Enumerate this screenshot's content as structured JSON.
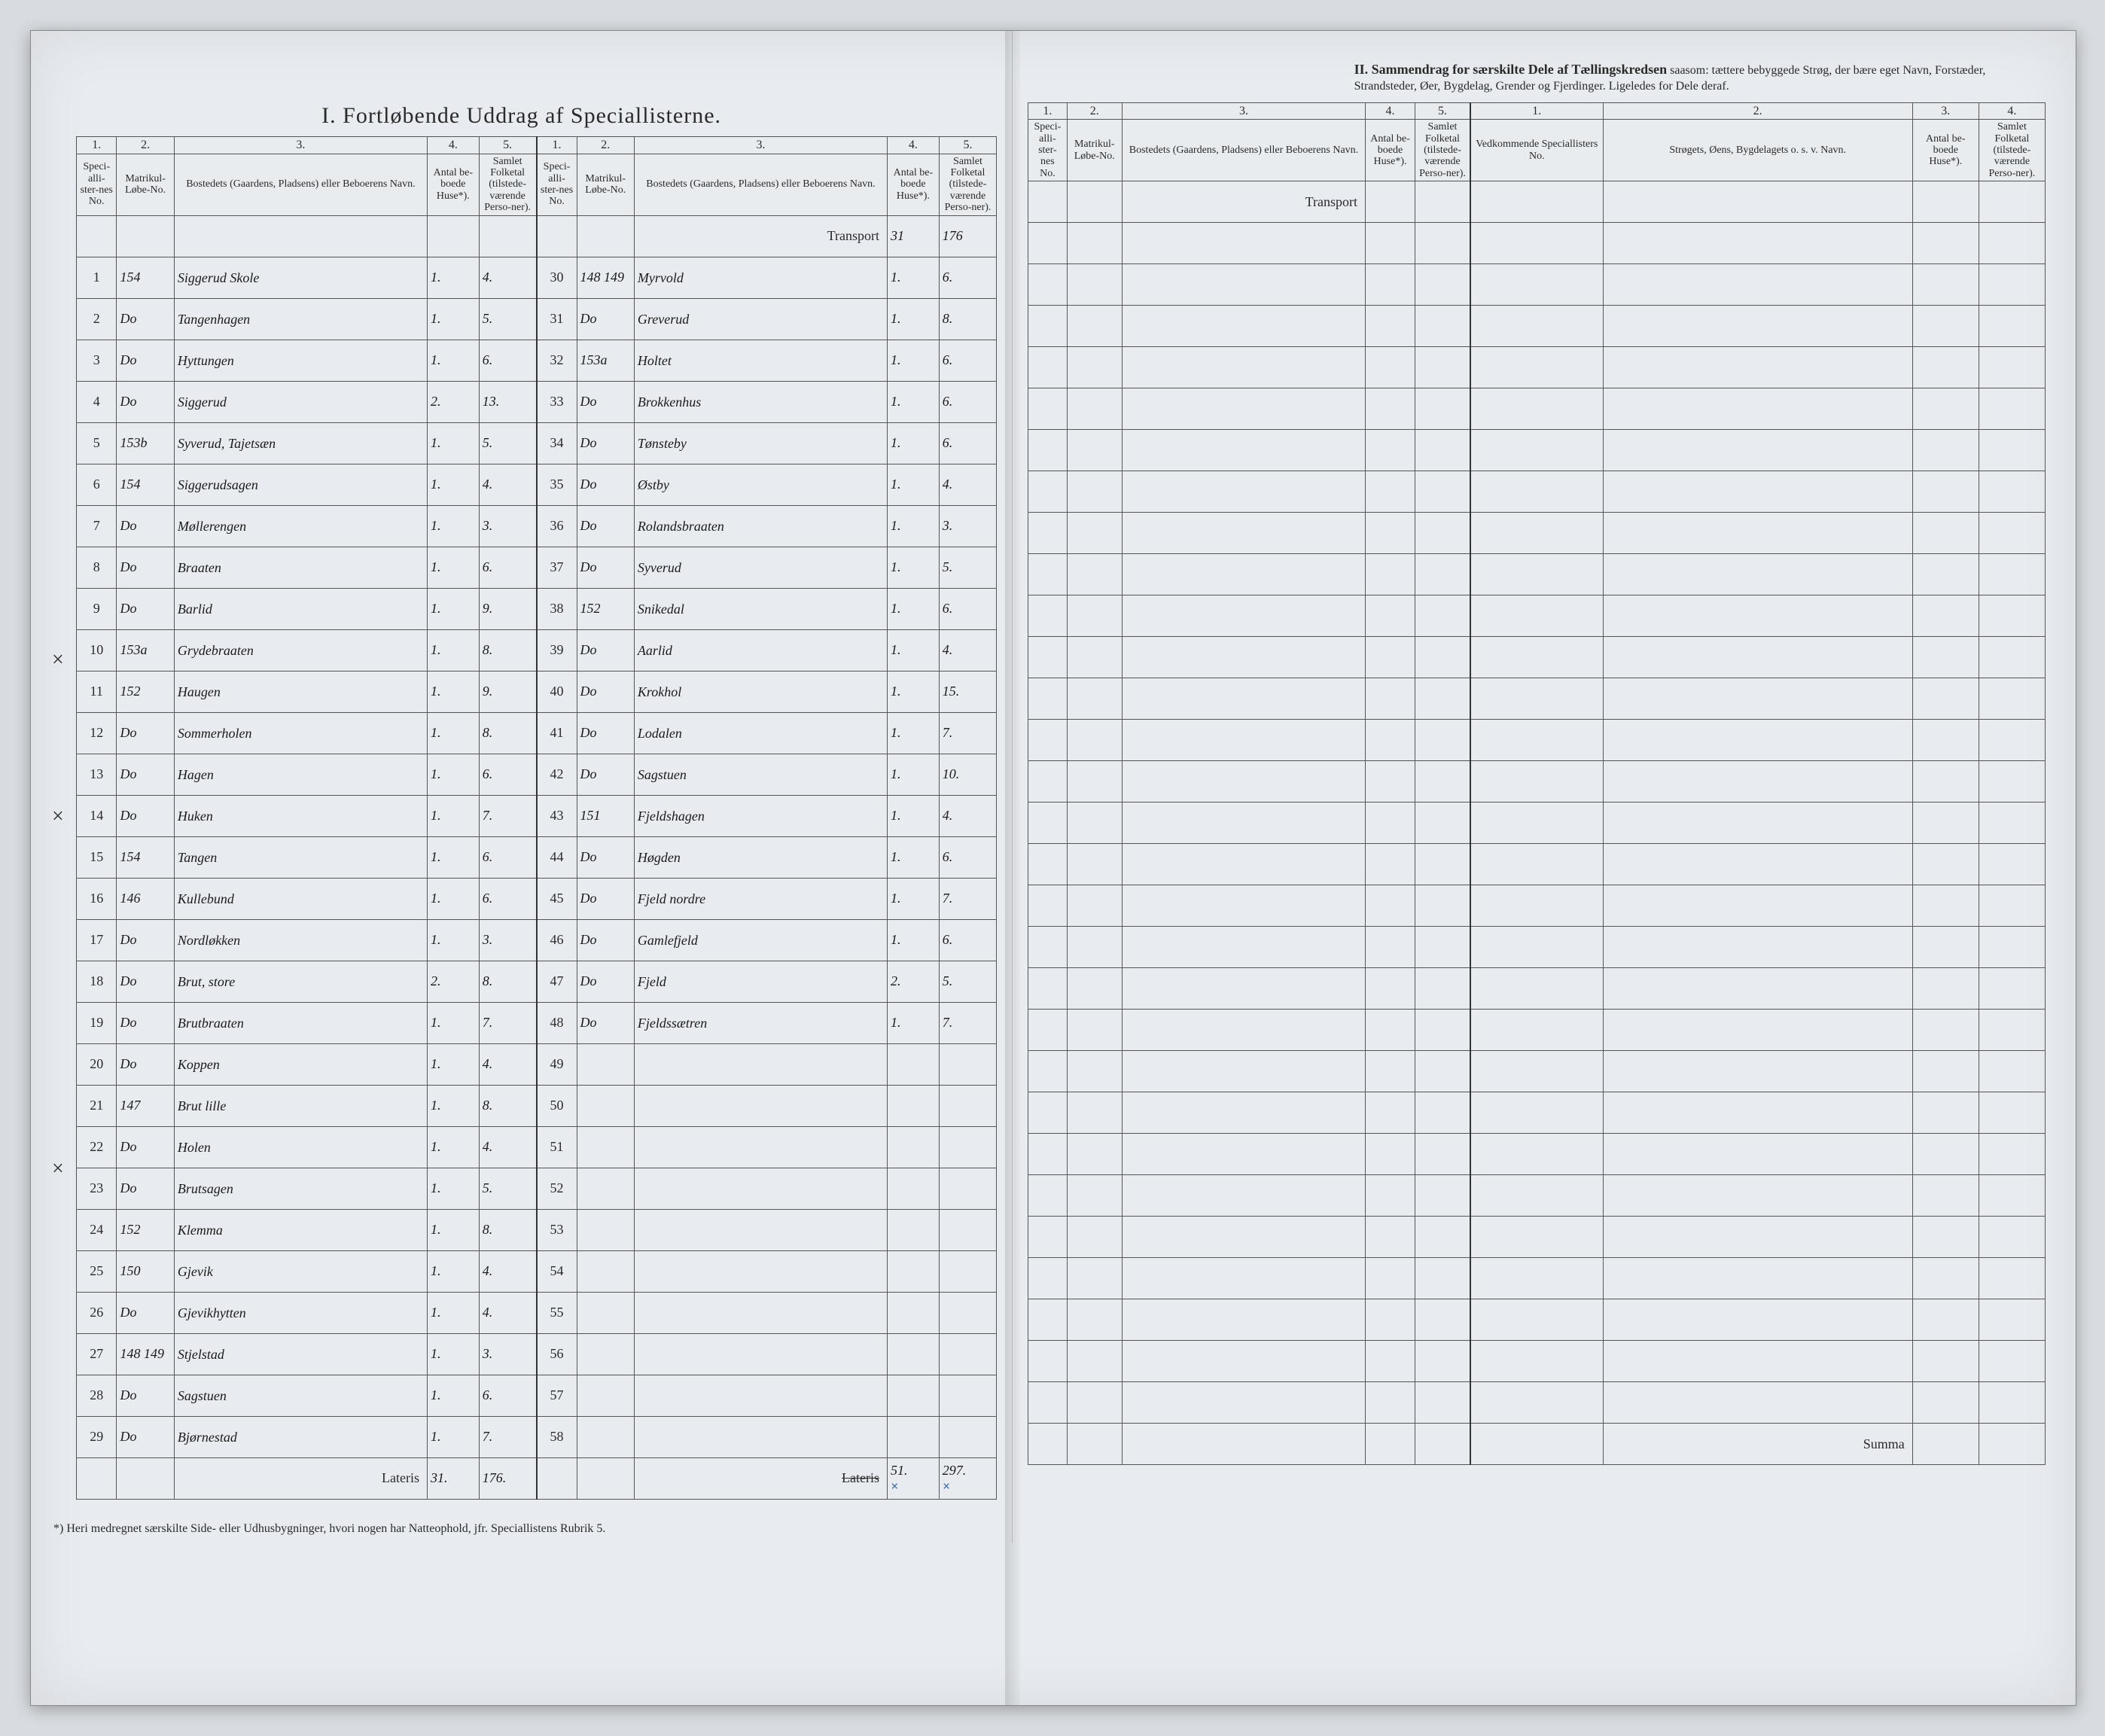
{
  "section1_title": "I.  Fortløbende Uddrag af Speciallisterne.",
  "section2_title_bold": "II.  Sammendrag for særskilte Dele af Tællingskredsen",
  "section2_title_rest": " saasom: tættere bebyggede Strøg, der bære eget Navn, Forstæder, Strandsteder, Øer, Bygdelag, Grender og Fjerdinger. Ligeledes for Dele deraf.",
  "col_labels": {
    "num1": "1.",
    "num2": "2.",
    "num3": "3.",
    "num4": "4.",
    "num5": "5.",
    "spec_no": "Speci-alli-ster-nes No.",
    "matrikul": "Matrikul-Løbe-No.",
    "bosted": "Bostedets (Gaardens, Pladsens) eller Beboerens Navn.",
    "huse": "Antal be-boede Huse*).",
    "folketal": "Samlet Folketal (tilstede-værende Perso-ner).",
    "vedkom": "Vedkommende Speciallisters No.",
    "stroget": "Strøgets, Øens, Bygdelagets o. s. v. Navn."
  },
  "transport_label": "Transport",
  "lateris_label": "Lateris",
  "summa_label": "Summa",
  "footnote": "*) Heri medregnet særskilte Side- eller Udhusbygninger, hvori nogen har Natteophold, jfr. Speciallistens Rubrik 5.",
  "transport_vals": {
    "huse": "31",
    "folk": "176"
  },
  "lateris_left": {
    "huse": "31.",
    "folk": "176."
  },
  "lateris_right": {
    "huse": "51.",
    "folk": "297."
  },
  "lateris_struck": "Lateris",
  "rowsA": [
    {
      "n": "1",
      "mat": "154",
      "name": "Siggerud Skole",
      "h": "1.",
      "f": "4."
    },
    {
      "n": "2",
      "mat": "Do",
      "name": "Tangenhagen",
      "h": "1.",
      "f": "5."
    },
    {
      "n": "3",
      "mat": "Do",
      "name": "Hyttungen",
      "h": "1.",
      "f": "6."
    },
    {
      "n": "4",
      "mat": "Do",
      "name": "Siggerud",
      "h": "2.",
      "f": "13."
    },
    {
      "n": "5",
      "mat": "153b",
      "name": "Syverud, Tajetsæn",
      "h": "1.",
      "f": "5."
    },
    {
      "n": "6",
      "mat": "154",
      "name": "Siggerudsagen",
      "h": "1.",
      "f": "4."
    },
    {
      "n": "7",
      "mat": "Do",
      "name": "Møllerengen",
      "h": "1.",
      "f": "3."
    },
    {
      "n": "8",
      "mat": "Do",
      "name": "Braaten",
      "h": "1.",
      "f": "6."
    },
    {
      "n": "9",
      "mat": "Do",
      "name": "Barlid",
      "h": "1.",
      "f": "9."
    },
    {
      "n": "10",
      "mat": "153a",
      "name": "Grydebraaten",
      "h": "1.",
      "f": "8."
    },
    {
      "n": "11",
      "mat": "152",
      "name": "Haugen",
      "h": "1.",
      "f": "9."
    },
    {
      "n": "12",
      "mat": "Do",
      "name": "Sommerholen",
      "h": "1.",
      "f": "8."
    },
    {
      "n": "13",
      "mat": "Do",
      "name": "Hagen",
      "h": "1.",
      "f": "6."
    },
    {
      "n": "14",
      "mat": "Do",
      "name": "Huken",
      "h": "1.",
      "f": "7."
    },
    {
      "n": "15",
      "mat": "154",
      "name": "Tangen",
      "h": "1.",
      "f": "6."
    },
    {
      "n": "16",
      "mat": "146",
      "name": "Kullebund",
      "h": "1.",
      "f": "6."
    },
    {
      "n": "17",
      "mat": "Do",
      "name": "Nordløkken",
      "h": "1.",
      "f": "3."
    },
    {
      "n": "18",
      "mat": "Do",
      "name": "Brut, store",
      "h": "2.",
      "f": "8."
    },
    {
      "n": "19",
      "mat": "Do",
      "name": "Brutbraaten",
      "h": "1.",
      "f": "7."
    },
    {
      "n": "20",
      "mat": "Do",
      "name": "Koppen",
      "h": "1.",
      "f": "4."
    },
    {
      "n": "21",
      "mat": "147",
      "name": "Brut lille",
      "h": "1.",
      "f": "8."
    },
    {
      "n": "22",
      "mat": "Do",
      "name": "Holen",
      "h": "1.",
      "f": "4."
    },
    {
      "n": "23",
      "mat": "Do",
      "name": "Brutsagen",
      "h": "1.",
      "f": "5."
    },
    {
      "n": "24",
      "mat": "152",
      "name": "Klemma",
      "h": "1.",
      "f": "8."
    },
    {
      "n": "25",
      "mat": "150",
      "name": "Gjevik",
      "h": "1.",
      "f": "4."
    },
    {
      "n": "26",
      "mat": "Do",
      "name": "Gjevikhytten",
      "h": "1.",
      "f": "4."
    },
    {
      "n": "27",
      "mat": "148 149",
      "name": "Stjelstad",
      "h": "1.",
      "f": "3."
    },
    {
      "n": "28",
      "mat": "Do",
      "name": "Sagstuen",
      "h": "1.",
      "f": "6."
    },
    {
      "n": "29",
      "mat": "Do",
      "name": "Bjørnestad",
      "h": "1.",
      "f": "7."
    }
  ],
  "rowsB": [
    {
      "n": "30",
      "mat": "148 149",
      "name": "Myrvold",
      "h": "1.",
      "f": "6."
    },
    {
      "n": "31",
      "mat": "Do",
      "name": "Greverud",
      "h": "1.",
      "f": "8."
    },
    {
      "n": "32",
      "mat": "153a",
      "name": "Holtet",
      "h": "1.",
      "f": "6."
    },
    {
      "n": "33",
      "mat": "Do",
      "name": "Brokkenhus",
      "h": "1.",
      "f": "6."
    },
    {
      "n": "34",
      "mat": "Do",
      "name": "Tønsteby",
      "h": "1.",
      "f": "6."
    },
    {
      "n": "35",
      "mat": "Do",
      "name": "Østby",
      "h": "1.",
      "f": "4."
    },
    {
      "n": "36",
      "mat": "Do",
      "name": "Rolandsbraaten",
      "h": "1.",
      "f": "3."
    },
    {
      "n": "37",
      "mat": "Do",
      "name": "Syverud",
      "h": "1.",
      "f": "5."
    },
    {
      "n": "38",
      "mat": "152",
      "name": "Snikedal",
      "h": "1.",
      "f": "6."
    },
    {
      "n": "39",
      "mat": "Do",
      "name": "Aarlid",
      "h": "1.",
      "f": "4."
    },
    {
      "n": "40",
      "mat": "Do",
      "name": "Krokhol",
      "h": "1.",
      "f": "15."
    },
    {
      "n": "41",
      "mat": "Do",
      "name": "Lodalen",
      "h": "1.",
      "f": "7."
    },
    {
      "n": "42",
      "mat": "Do",
      "name": "Sagstuen",
      "h": "1.",
      "f": "10."
    },
    {
      "n": "43",
      "mat": "151",
      "name": "Fjeldshagen",
      "h": "1.",
      "f": "4."
    },
    {
      "n": "44",
      "mat": "Do",
      "name": "Høgden",
      "h": "1.",
      "f": "6."
    },
    {
      "n": "45",
      "mat": "Do",
      "name": "Fjeld nordre",
      "h": "1.",
      "f": "7."
    },
    {
      "n": "46",
      "mat": "Do",
      "name": "Gamlefjeld",
      "h": "1.",
      "f": "6."
    },
    {
      "n": "47",
      "mat": "Do",
      "name": "Fjeld",
      "h": "2.",
      "f": "5."
    },
    {
      "n": "48",
      "mat": "Do",
      "name": "Fjeldssætren",
      "h": "1.",
      "f": "7."
    },
    {
      "n": "49",
      "mat": "",
      "name": "",
      "h": "",
      "f": ""
    },
    {
      "n": "50",
      "mat": "",
      "name": "",
      "h": "",
      "f": ""
    },
    {
      "n": "51",
      "mat": "",
      "name": "",
      "h": "",
      "f": ""
    },
    {
      "n": "52",
      "mat": "",
      "name": "",
      "h": "",
      "f": ""
    },
    {
      "n": "53",
      "mat": "",
      "name": "",
      "h": "",
      "f": ""
    },
    {
      "n": "54",
      "mat": "",
      "name": "",
      "h": "",
      "f": ""
    },
    {
      "n": "55",
      "mat": "",
      "name": "",
      "h": "",
      "f": ""
    },
    {
      "n": "56",
      "mat": "",
      "name": "",
      "h": "",
      "f": ""
    },
    {
      "n": "57",
      "mat": "",
      "name": "",
      "h": "",
      "f": ""
    },
    {
      "n": "58",
      "mat": "",
      "name": "",
      "h": "",
      "f": ""
    }
  ],
  "cross_rows_left": [
    10,
    14,
    23
  ],
  "cross_rows_mid": [
    31,
    37
  ],
  "colors": {
    "page_bg": "#e8ebef",
    "ink": "#1a1a1a",
    "rule": "#555555",
    "blue_pencil": "#3a6ea5"
  }
}
